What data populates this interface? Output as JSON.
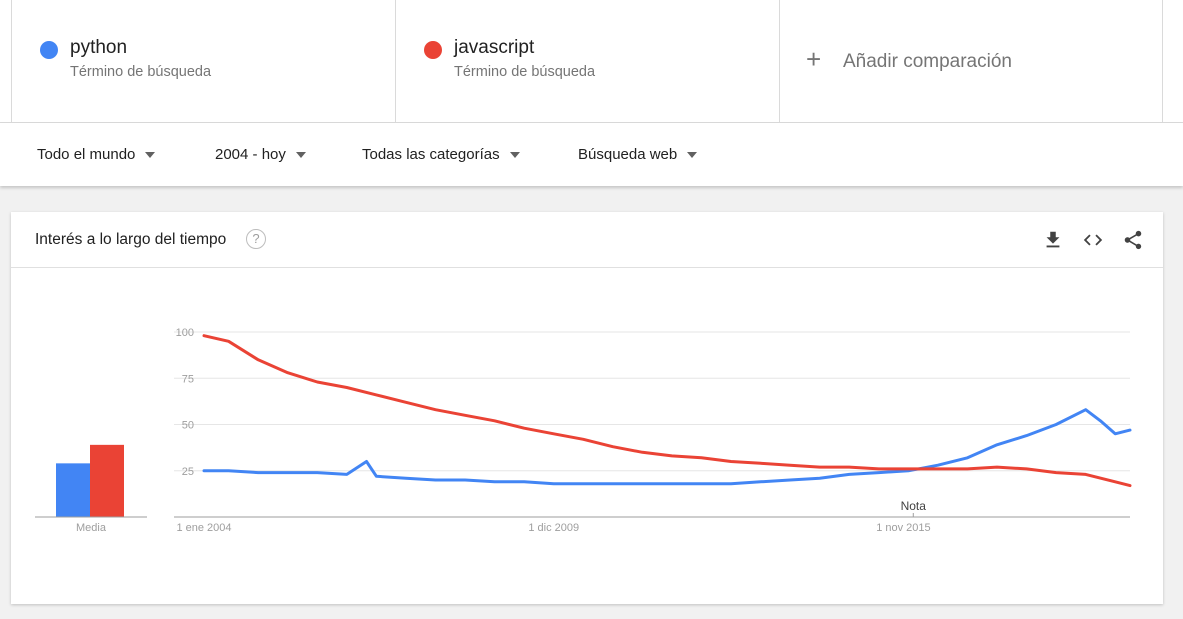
{
  "terms": [
    {
      "name": "python",
      "subtitle": "Término de búsqueda",
      "color": "#4285f4"
    },
    {
      "name": "javascript",
      "subtitle": "Término de búsqueda",
      "color": "#ea4335"
    }
  ],
  "add_comparison": {
    "plus": "+",
    "label": "Añadir comparación"
  },
  "filters": {
    "region": "Todo el mundo",
    "period": "2004 - hoy",
    "category": "Todas las categorías",
    "search_type": "Búsqueda web"
  },
  "card": {
    "title": "Interés a lo largo del tiempo",
    "help": "?",
    "icons": [
      "download-icon",
      "embed-code-icon",
      "share-icon"
    ]
  },
  "chart_data": {
    "type": "line",
    "x_start": "2004-01",
    "x_end": "2019-09",
    "ylim": [
      0,
      100
    ],
    "yticks": [
      25,
      50,
      75,
      100
    ],
    "xticks": [
      {
        "label": "1 ene 2004",
        "date": "2004-01"
      },
      {
        "label": "1 dic 2009",
        "date": "2009-12"
      },
      {
        "label": "1 nov 2015",
        "date": "2015-11"
      }
    ],
    "note": {
      "label": "Nota",
      "date": "2016-01"
    },
    "average_label": "Media",
    "averages": [
      {
        "series": "python",
        "value": 29
      },
      {
        "series": "javascript",
        "value": 39
      }
    ],
    "series": [
      {
        "name": "python",
        "color": "#4285f4",
        "points": [
          [
            "2004-01",
            25
          ],
          [
            "2004-06",
            25
          ],
          [
            "2004-12",
            24
          ],
          [
            "2005-06",
            24
          ],
          [
            "2005-12",
            24
          ],
          [
            "2006-06",
            23
          ],
          [
            "2006-10",
            30
          ],
          [
            "2006-12",
            22
          ],
          [
            "2007-06",
            21
          ],
          [
            "2007-12",
            20
          ],
          [
            "2008-06",
            20
          ],
          [
            "2008-12",
            19
          ],
          [
            "2009-06",
            19
          ],
          [
            "2009-12",
            18
          ],
          [
            "2010-06",
            18
          ],
          [
            "2010-12",
            18
          ],
          [
            "2011-06",
            18
          ],
          [
            "2011-12",
            18
          ],
          [
            "2012-06",
            18
          ],
          [
            "2012-12",
            18
          ],
          [
            "2013-06",
            19
          ],
          [
            "2013-12",
            20
          ],
          [
            "2014-06",
            21
          ],
          [
            "2014-12",
            23
          ],
          [
            "2015-06",
            24
          ],
          [
            "2015-12",
            25
          ],
          [
            "2016-06",
            28
          ],
          [
            "2016-12",
            32
          ],
          [
            "2017-06",
            39
          ],
          [
            "2017-12",
            44
          ],
          [
            "2018-06",
            50
          ],
          [
            "2018-12",
            58
          ],
          [
            "2019-03",
            52
          ],
          [
            "2019-06",
            45
          ],
          [
            "2019-09",
            47
          ]
        ]
      },
      {
        "name": "javascript",
        "color": "#ea4335",
        "points": [
          [
            "2004-01",
            98
          ],
          [
            "2004-06",
            95
          ],
          [
            "2004-12",
            85
          ],
          [
            "2005-06",
            78
          ],
          [
            "2005-12",
            73
          ],
          [
            "2006-06",
            70
          ],
          [
            "2006-12",
            66
          ],
          [
            "2007-06",
            62
          ],
          [
            "2007-12",
            58
          ],
          [
            "2008-06",
            55
          ],
          [
            "2008-12",
            52
          ],
          [
            "2009-06",
            48
          ],
          [
            "2009-12",
            45
          ],
          [
            "2010-06",
            42
          ],
          [
            "2010-12",
            38
          ],
          [
            "2011-06",
            35
          ],
          [
            "2011-12",
            33
          ],
          [
            "2012-06",
            32
          ],
          [
            "2012-12",
            30
          ],
          [
            "2013-06",
            29
          ],
          [
            "2013-12",
            28
          ],
          [
            "2014-06",
            27
          ],
          [
            "2014-12",
            27
          ],
          [
            "2015-06",
            26
          ],
          [
            "2015-12",
            26
          ],
          [
            "2016-06",
            26
          ],
          [
            "2016-12",
            26
          ],
          [
            "2017-06",
            27
          ],
          [
            "2017-12",
            26
          ],
          [
            "2018-06",
            24
          ],
          [
            "2018-12",
            23
          ],
          [
            "2019-06",
            19
          ],
          [
            "2019-09",
            17
          ]
        ]
      }
    ]
  }
}
